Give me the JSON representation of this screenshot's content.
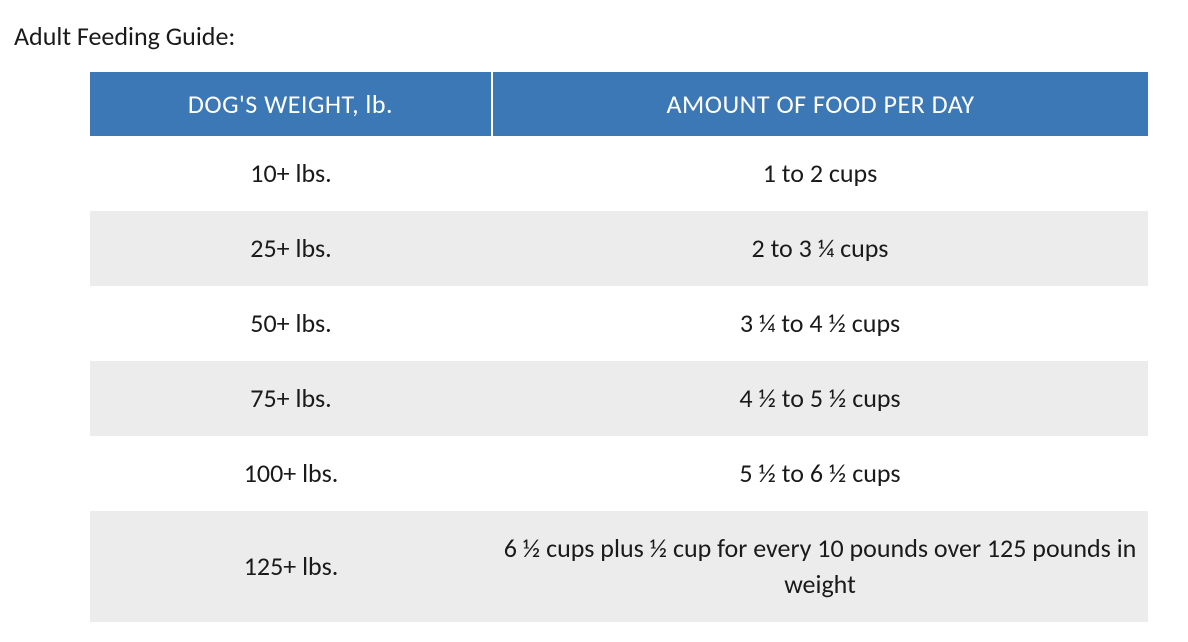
{
  "title": "Adult Feeding Guide:",
  "table": {
    "header_bg": "#3d78b6",
    "header_fg": "#ffffff",
    "row_even_bg": "#ffffff",
    "row_odd_bg": "#ececec",
    "text_color": "#1a1a1a",
    "header_fontsize": 26,
    "body_fontsize": 26,
    "columns": [
      "DOG'S WEIGHT, lb.",
      "AMOUNT OF FOOD PER DAY"
    ],
    "col_widths_pct": [
      38,
      62
    ],
    "rows": [
      [
        "10+ lbs.",
        "1 to 2 cups"
      ],
      [
        "25+ lbs.",
        "2 to 3 ¼ cups"
      ],
      [
        "50+ lbs.",
        "3 ¼ to 4 ½ cups"
      ],
      [
        "75+ lbs.",
        "4 ½ to 5 ½ cups"
      ],
      [
        "100+ lbs.",
        "5 ½ to 6 ½ cups"
      ],
      [
        "125+ lbs.",
        "6 ½ cups plus ½ cup for every 10 pounds over 125 pounds in weight"
      ]
    ]
  }
}
